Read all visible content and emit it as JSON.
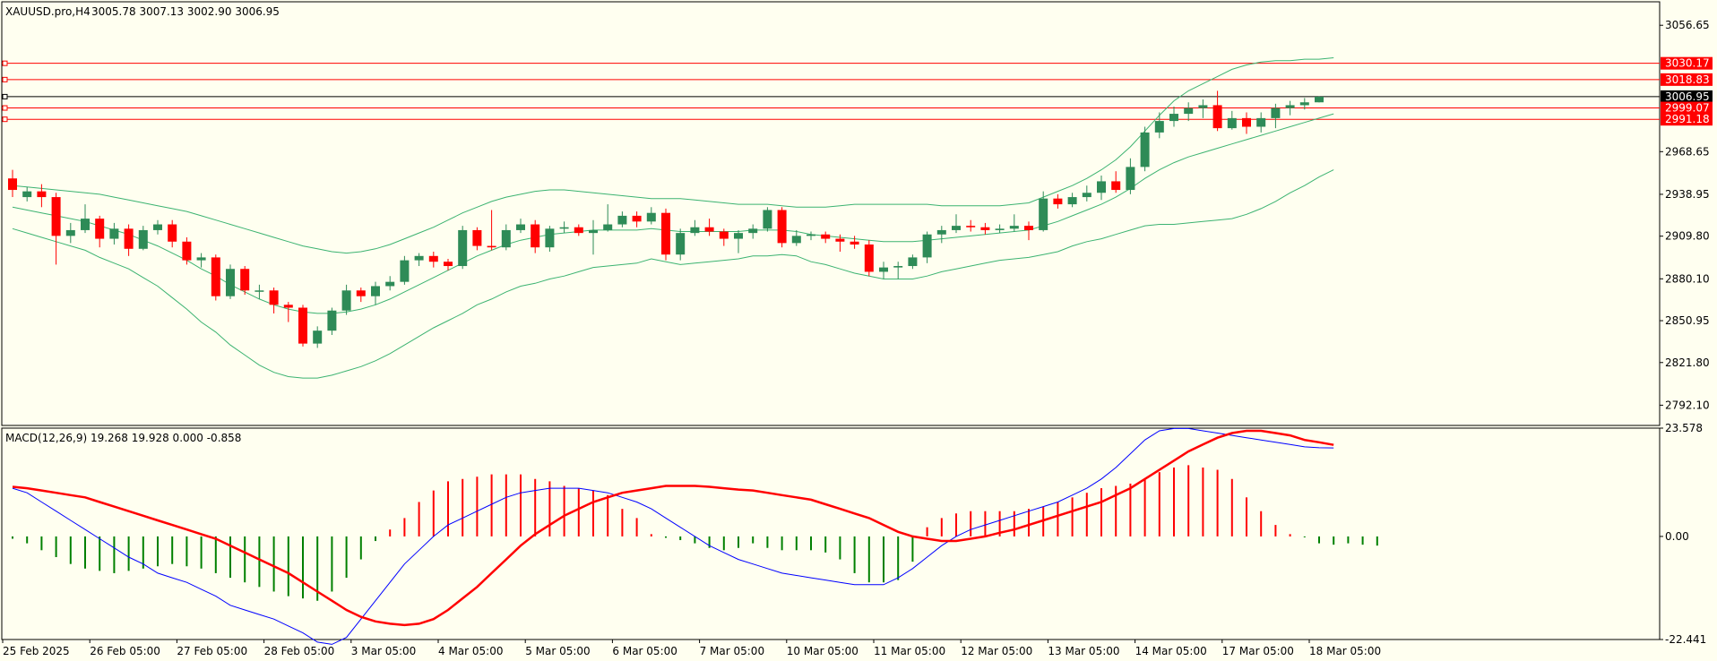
{
  "chart_data": [
    {
      "type": "candlestick",
      "title": "XAUUSD.pro,H4",
      "ohlc_label": "3005.78 3007.13 3002.90 3006.95",
      "ylim": [
        2778,
        3073
      ],
      "y_ticks": [
        "3056.65",
        "2968.65",
        "2938.95",
        "2909.80",
        "2880.10",
        "2850.95",
        "2821.80",
        "2792.10"
      ],
      "x_ticks": [
        {
          "index": 0,
          "label": "25 Feb 2025"
        },
        {
          "index": 6,
          "label": "26 Feb 05:00"
        },
        {
          "index": 12,
          "label": "27 Feb 05:00"
        },
        {
          "index": 18,
          "label": "28 Feb 05:00"
        },
        {
          "index": 24,
          "label": "3 Mar 05:00"
        },
        {
          "index": 30,
          "label": "4 Mar 05:00"
        },
        {
          "index": 36,
          "label": "5 Mar 05:00"
        },
        {
          "index": 42,
          "label": "6 Mar 05:00"
        },
        {
          "index": 48,
          "label": "7 Mar 05:00"
        },
        {
          "index": 54,
          "label": "10 Mar 05:00"
        },
        {
          "index": 60,
          "label": "11 Mar 05:00"
        },
        {
          "index": 66,
          "label": "12 Mar 05:00"
        },
        {
          "index": 72,
          "label": "13 Mar 05:00"
        },
        {
          "index": 78,
          "label": "14 Mar 05:00"
        },
        {
          "index": 84,
          "label": "17 Mar 05:00"
        },
        {
          "index": 90,
          "label": "18 Mar 05:00"
        }
      ],
      "price_lines": [
        {
          "value": 3030.17,
          "label": "3030.17",
          "color": "#ff0000"
        },
        {
          "value": 3018.83,
          "label": "3018.83",
          "color": "#ff0000"
        },
        {
          "value": 3006.95,
          "label": "3006.95",
          "color": "#000000"
        },
        {
          "value": 2999.07,
          "label": "2999.07",
          "color": "#ff0000"
        },
        {
          "value": 2991.18,
          "label": "2991.18",
          "color": "#ff0000"
        }
      ],
      "candles": [
        [
          2950,
          2942,
          2956,
          2937
        ],
        [
          2937,
          2941,
          2944,
          2934
        ],
        [
          2941,
          2937,
          2946,
          2930
        ],
        [
          2937,
          2910,
          2940,
          2890
        ],
        [
          2910,
          2914,
          2919,
          2905
        ],
        [
          2914,
          2922,
          2932,
          2912
        ],
        [
          2922,
          2908,
          2924,
          2902
        ],
        [
          2908,
          2915,
          2919,
          2904
        ],
        [
          2915,
          2901,
          2918,
          2896
        ],
        [
          2901,
          2914,
          2917,
          2900
        ],
        [
          2914,
          2918,
          2921,
          2911
        ],
        [
          2918,
          2906,
          2921,
          2902
        ],
        [
          2906,
          2893,
          2909,
          2890
        ],
        [
          2893,
          2895,
          2898,
          2888
        ],
        [
          2895,
          2868,
          2897,
          2865
        ],
        [
          2868,
          2887,
          2890,
          2866
        ],
        [
          2887,
          2872,
          2889,
          2869
        ],
        [
          2872,
          2872,
          2876,
          2866
        ],
        [
          2872,
          2862,
          2874,
          2856
        ],
        [
          2862,
          2860,
          2864,
          2850
        ],
        [
          2860,
          2835,
          2862,
          2833
        ],
        [
          2835,
          2844,
          2847,
          2832
        ],
        [
          2844,
          2858,
          2860,
          2841
        ],
        [
          2858,
          2872,
          2876,
          2855
        ],
        [
          2872,
          2868,
          2874,
          2864
        ],
        [
          2868,
          2875,
          2878,
          2862
        ],
        [
          2875,
          2878,
          2882,
          2872
        ],
        [
          2878,
          2893,
          2896,
          2876
        ],
        [
          2893,
          2896,
          2898,
          2889
        ],
        [
          2896,
          2892,
          2899,
          2888
        ],
        [
          2892,
          2889,
          2894,
          2886
        ],
        [
          2889,
          2914,
          2917,
          2887
        ],
        [
          2914,
          2903,
          2916,
          2900
        ],
        [
          2903,
          2902,
          2928,
          2900
        ],
        [
          2902,
          2914,
          2918,
          2900
        ],
        [
          2914,
          2918,
          2922,
          2912
        ],
        [
          2918,
          2902,
          2921,
          2898
        ],
        [
          2902,
          2915,
          2917,
          2899
        ],
        [
          2915,
          2916,
          2920,
          2912
        ],
        [
          2916,
          2912,
          2918,
          2910
        ],
        [
          2912,
          2914,
          2921,
          2897
        ],
        [
          2914,
          2918,
          2932,
          2913
        ],
        [
          2918,
          2924,
          2927,
          2916
        ],
        [
          2924,
          2920,
          2927,
          2916
        ],
        [
          2920,
          2926,
          2930,
          2918
        ],
        [
          2926,
          2897,
          2929,
          2893
        ],
        [
          2897,
          2912,
          2915,
          2893
        ],
        [
          2912,
          2916,
          2921,
          2910
        ],
        [
          2916,
          2913,
          2922,
          2910
        ],
        [
          2913,
          2908,
          2915,
          2903
        ],
        [
          2908,
          2912,
          2914,
          2898
        ],
        [
          2912,
          2915,
          2918,
          2908
        ],
        [
          2915,
          2928,
          2930,
          2913
        ],
        [
          2928,
          2905,
          2930,
          2902
        ],
        [
          2905,
          2910,
          2914,
          2903
        ],
        [
          2910,
          2911,
          2913,
          2907
        ],
        [
          2911,
          2908,
          2913,
          2905
        ],
        [
          2908,
          2906,
          2911,
          2899
        ],
        [
          2906,
          2904,
          2910,
          2901
        ],
        [
          2904,
          2885,
          2907,
          2882
        ],
        [
          2885,
          2888,
          2892,
          2880
        ],
        [
          2888,
          2889,
          2892,
          2880
        ],
        [
          2889,
          2895,
          2897,
          2887
        ],
        [
          2895,
          2911,
          2913,
          2891
        ],
        [
          2911,
          2914,
          2917,
          2905
        ],
        [
          2914,
          2917,
          2925,
          2912
        ],
        [
          2917,
          2916,
          2921,
          2913
        ],
        [
          2916,
          2914,
          2919,
          2911
        ],
        [
          2914,
          2915,
          2918,
          2912
        ],
        [
          2915,
          2917,
          2925,
          2913
        ],
        [
          2917,
          2914,
          2920,
          2907
        ],
        [
          2914,
          2936,
          2941,
          2913
        ],
        [
          2936,
          2932,
          2939,
          2929
        ],
        [
          2932,
          2937,
          2940,
          2930
        ],
        [
          2937,
          2940,
          2945,
          2934
        ],
        [
          2940,
          2948,
          2952,
          2935
        ],
        [
          2948,
          2942,
          2955,
          2940
        ],
        [
          2942,
          2958,
          2964,
          2939
        ],
        [
          2958,
          2982,
          2986,
          2955
        ],
        [
          2982,
          2990,
          2996,
          2978
        ],
        [
          2990,
          2995,
          3000,
          2986
        ],
        [
          2995,
          2999,
          3003,
          2990
        ],
        [
          2999,
          3001,
          3005,
          2992
        ],
        [
          3001,
          2985,
          3011,
          2983
        ],
        [
          2985,
          2992,
          2997,
          2984
        ],
        [
          2992,
          2986,
          2996,
          2981
        ],
        [
          2986,
          2992,
          2996,
          2982
        ],
        [
          2992,
          2999,
          3002,
          2985
        ],
        [
          2999,
          3001,
          3004,
          2994
        ],
        [
          3001,
          3003,
          3006,
          2998
        ],
        [
          3003,
          3006.95,
          3007.13,
          3002.9
        ]
      ],
      "bollinger": {
        "upper": [
          2945,
          2944,
          2943,
          2942,
          2941,
          2940,
          2939,
          2937,
          2935,
          2933,
          2931,
          2929,
          2927,
          2924,
          2921,
          2918,
          2915,
          2912,
          2909,
          2906,
          2903,
          2901,
          2899,
          2898,
          2899,
          2901,
          2904,
          2908,
          2912,
          2916,
          2921,
          2926,
          2930,
          2934,
          2937,
          2939,
          2941,
          2942,
          2942,
          2941,
          2940,
          2939,
          2938,
          2937,
          2936,
          2936,
          2936,
          2935,
          2934,
          2933,
          2932,
          2932,
          2932,
          2931,
          2930,
          2930,
          2930,
          2931,
          2932,
          2932,
          2932,
          2932,
          2932,
          2932,
          2931,
          2931,
          2931,
          2931,
          2931,
          2932,
          2933,
          2937,
          2941,
          2945,
          2950,
          2956,
          2963,
          2972,
          2983,
          2994,
          3004,
          3011,
          3016,
          3021,
          3026,
          3029,
          3031,
          3032,
          3032,
          3033,
          3033,
          3034
        ],
        "middle": [
          2930,
          2928,
          2926,
          2924,
          2922,
          2920,
          2917,
          2914,
          2911,
          2907,
          2903,
          2898,
          2893,
          2887,
          2882,
          2876,
          2871,
          2866,
          2862,
          2859,
          2857,
          2856,
          2856,
          2857,
          2859,
          2862,
          2866,
          2871,
          2876,
          2881,
          2886,
          2891,
          2896,
          2900,
          2904,
          2907,
          2909,
          2911,
          2912,
          2913,
          2914,
          2914,
          2914,
          2914,
          2915,
          2914,
          2913,
          2913,
          2913,
          2913,
          2913,
          2914,
          2914,
          2914,
          2913,
          2911,
          2910,
          2909,
          2908,
          2907,
          2906,
          2906,
          2906,
          2907,
          2908,
          2909,
          2910,
          2911,
          2912,
          2913,
          2914,
          2917,
          2920,
          2924,
          2928,
          2932,
          2937,
          2943,
          2950,
          2956,
          2961,
          2965,
          2968,
          2971,
          2974,
          2977,
          2980,
          2983,
          2986,
          2989,
          2992,
          2995
        ],
        "lower": [
          2915,
          2912,
          2909,
          2906,
          2903,
          2900,
          2895,
          2891,
          2887,
          2881,
          2875,
          2867,
          2859,
          2850,
          2843,
          2834,
          2827,
          2820,
          2815,
          2812,
          2811,
          2811,
          2813,
          2816,
          2819,
          2823,
          2828,
          2834,
          2840,
          2846,
          2851,
          2856,
          2862,
          2866,
          2871,
          2875,
          2877,
          2880,
          2882,
          2885,
          2888,
          2889,
          2890,
          2891,
          2894,
          2892,
          2890,
          2891,
          2892,
          2893,
          2894,
          2896,
          2896,
          2897,
          2896,
          2892,
          2890,
          2887,
          2884,
          2882,
          2880,
          2880,
          2880,
          2882,
          2885,
          2887,
          2889,
          2891,
          2893,
          2894,
          2895,
          2897,
          2899,
          2903,
          2906,
          2908,
          2911,
          2914,
          2917,
          2918,
          2918,
          2919,
          2920,
          2921,
          2922,
          2925,
          2929,
          2934,
          2940,
          2945,
          2951,
          2956
        ]
      }
    },
    {
      "type": "line+bar",
      "title": "MACD(12,26,9) 19.268 19.928 0.000 -0.858",
      "ylim": [
        -22.441,
        23.578
      ],
      "y_ticks": [
        "23.578",
        "0.00",
        "-22.441"
      ],
      "series": [
        {
          "name": "MACD histogram",
          "color_pos": "#ff0000",
          "color_neg": "#008000",
          "values": [
            -0.5,
            -1.5,
            -3,
            -4.5,
            -6,
            -7,
            -7.5,
            -8,
            -7.5,
            -7,
            -6.5,
            -6,
            -6.5,
            -7,
            -8,
            -9,
            -10,
            -11,
            -12,
            -13,
            -13.5,
            -14,
            -12,
            -9,
            -5,
            -1,
            1.5,
            4,
            7.5,
            10,
            12,
            12.5,
            13,
            13.5,
            13.5,
            13.5,
            12.5,
            12,
            11,
            10.5,
            10,
            9,
            6,
            4,
            0.5,
            -0.3,
            -0.8,
            -1.5,
            -2.5,
            -3,
            -2.5,
            -1.5,
            -2.5,
            -3,
            -3,
            -3,
            -3.5,
            -5,
            -8,
            -10,
            -10,
            -9.5,
            -5.5,
            2,
            4,
            5,
            5.5,
            5.5,
            5.5,
            5.5,
            6,
            6.5,
            7.5,
            8.5,
            9.5,
            10.5,
            11,
            11.5,
            12.5,
            14,
            15,
            15.5,
            15,
            14.5,
            12.5,
            8.5,
            5.5,
            2.5,
            0.5,
            -0.2,
            -1.5,
            -1.8,
            -1.5,
            -1.8,
            -2
          ]
        },
        {
          "name": "MACD main",
          "color": "#0000ff",
          "values": [
            10.5,
            9.5,
            7.5,
            5.5,
            3.5,
            1.5,
            -0.5,
            -2.5,
            -4.5,
            -6,
            -8,
            -9,
            -10,
            -11.5,
            -13,
            -15,
            -16,
            -17,
            -18,
            -19.5,
            -21,
            -23,
            -23.5,
            -22,
            -18,
            -14,
            -10,
            -6,
            -3,
            0,
            2.5,
            4,
            5.5,
            7,
            8.5,
            9.5,
            10,
            10.5,
            10.5,
            10.5,
            10,
            9.5,
            8.5,
            7.5,
            6,
            4,
            2,
            0,
            -2,
            -3.5,
            -5,
            -6,
            -7,
            -8,
            -8.5,
            -9,
            -9.5,
            -10,
            -10.5,
            -10.5,
            -10.5,
            -9,
            -7,
            -4.5,
            -2,
            0,
            1.5,
            2.5,
            3.5,
            4.5,
            5.5,
            6.5,
            7.5,
            9,
            10.5,
            12.5,
            15,
            18,
            21,
            23,
            23.5,
            23.5,
            23,
            22.5,
            22,
            21.5,
            21,
            20.5,
            20,
            19.5,
            19.3,
            19.268
          ]
        },
        {
          "name": "MACD signal",
          "color": "#ff0000",
          "values": [
            10.8,
            10.5,
            10,
            9.5,
            9,
            8.5,
            7.5,
            6.5,
            5.5,
            4.5,
            3.5,
            2.5,
            1.5,
            0.5,
            -0.5,
            -2,
            -3.5,
            -5,
            -6.5,
            -8,
            -10,
            -12,
            -14,
            -16,
            -17.5,
            -18.5,
            -19,
            -19.3,
            -19,
            -18,
            -16,
            -13.5,
            -11,
            -8,
            -5,
            -2,
            0.5,
            2.5,
            4.5,
            6,
            7.5,
            8.5,
            9.5,
            10,
            10.5,
            11,
            11,
            11,
            10.8,
            10.5,
            10.2,
            10,
            9.5,
            9,
            8.5,
            8,
            7,
            6,
            5,
            4,
            2.5,
            1,
            0,
            -0.5,
            -1,
            -1,
            -0.5,
            0,
            0.8,
            1.5,
            2.5,
            3.5,
            4.5,
            5.5,
            6.5,
            7.5,
            9,
            10.5,
            12.5,
            14.5,
            16.5,
            18.5,
            20,
            21.5,
            22.5,
            23,
            23,
            22.5,
            22,
            21,
            20.5,
            19.928
          ]
        }
      ]
    }
  ]
}
